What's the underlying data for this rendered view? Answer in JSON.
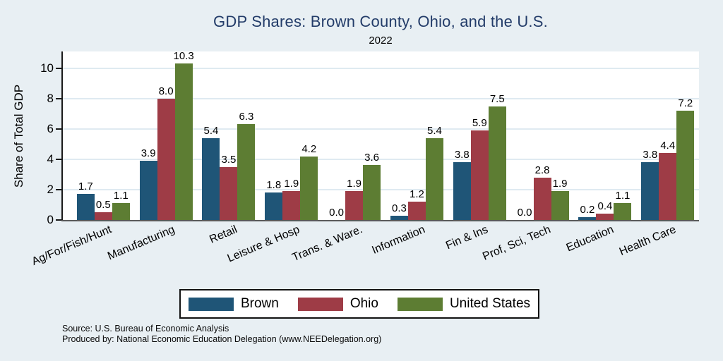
{
  "chart_data": {
    "type": "bar",
    "title": "GDP Shares: Brown County, Ohio, and the U.S.",
    "subtitle": "2022",
    "ylabel": "Share of Total GDP",
    "ylim": [
      0,
      11.1
    ],
    "yticks": [
      0,
      2,
      4,
      6,
      8,
      10
    ],
    "grid": true,
    "value_labels": true,
    "legend_position": "bottom-center",
    "categories": [
      "Ag/For/Fish/Hunt",
      "Manufacturing",
      "Retail",
      "Leisure & Hosp",
      "Trans. & Ware.",
      "Information",
      "Fin & Ins",
      "Prof, Sci, Tech",
      "Education",
      "Health Care"
    ],
    "series": [
      {
        "name": "Brown",
        "color": "#1f5577",
        "values": [
          1.7,
          3.9,
          5.4,
          1.8,
          0.0,
          0.3,
          3.8,
          0.0,
          0.2,
          3.8
        ]
      },
      {
        "name": "Ohio",
        "color": "#9e3c46",
        "values": [
          0.5,
          8.0,
          3.5,
          1.9,
          1.9,
          1.2,
          5.9,
          2.8,
          0.4,
          4.4
        ]
      },
      {
        "name": "United States",
        "color": "#5d7d33",
        "values": [
          1.1,
          10.3,
          6.3,
          4.2,
          3.6,
          5.4,
          7.5,
          1.9,
          1.1,
          7.2
        ]
      }
    ]
  },
  "notes": {
    "source": "Source: U.S. Bureau of Economic Analysis",
    "produced_by": "Produced by: National Economic Education Delegation (www.NEEDelegation.org)"
  },
  "colors": {
    "background": "#e8eff3",
    "plot_background": "#ffffff",
    "title_text": "#233c69",
    "gridline": "#dfeaf1"
  }
}
